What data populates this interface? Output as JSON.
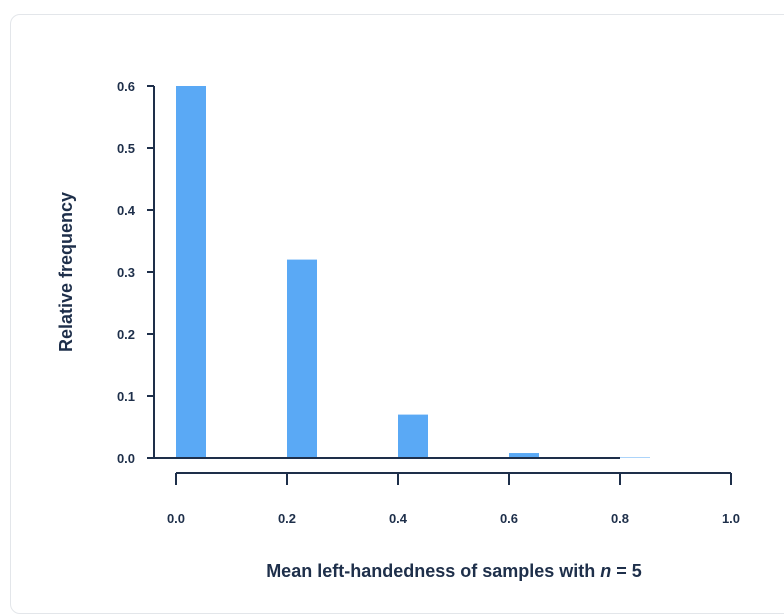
{
  "chart_data": {
    "type": "bar",
    "xlabel_prefix": "Mean left-handedness of samples with ",
    "xlabel_var": "n",
    "xlabel_suffix": " = 5",
    "ylabel": "Relative frequency",
    "x": [
      0.0,
      0.2,
      0.4,
      0.6,
      0.8
    ],
    "values": [
      0.6,
      0.32,
      0.07,
      0.008,
      0.0004
    ],
    "xlim": [
      0.0,
      1.0
    ],
    "ylim": [
      0.0,
      0.6
    ],
    "xticks": [
      "0.0",
      "0.2",
      "0.4",
      "0.6",
      "0.8",
      "1.0"
    ],
    "yticks": [
      "0.0",
      "0.1",
      "0.2",
      "0.3",
      "0.4",
      "0.5",
      "0.6"
    ],
    "grid": false,
    "bar_color": "#5aa9f5",
    "axis_color": "#1e2f4a"
  }
}
